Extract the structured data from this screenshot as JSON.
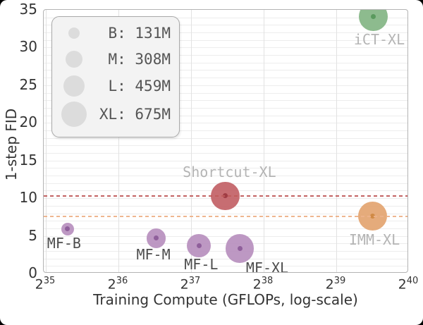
{
  "chart_data": {
    "type": "scatter",
    "subtype": "bubble",
    "xlabel": "Training Compute (GFLOPs, log-scale)",
    "ylabel": "1-step FID",
    "x_scale": "log2",
    "x_ticks": [
      "2^35",
      "2^36",
      "2^37",
      "2^38",
      "2^39",
      "2^40"
    ],
    "xlim_log2": [
      35,
      40
    ],
    "y_ticks": [
      0,
      5,
      10,
      15,
      20,
      25,
      30,
      35
    ],
    "ylim": [
      0,
      35
    ],
    "grid": "horizontal minor lines every 1 FID, vertical lines at each power of 2",
    "size_legend": {
      "position": "upper-left",
      "circle_color": "#dcdcdc",
      "entries": [
        {
          "label": "B: 131M",
          "size_key": "B",
          "params_m": 131
        },
        {
          "label": "M: 308M",
          "size_key": "M",
          "params_m": 308
        },
        {
          "label": "L: 459M",
          "size_key": "L",
          "params_m": 459
        },
        {
          "label": "XL: 675M",
          "size_key": "XL",
          "params_m": 675
        }
      ]
    },
    "points": [
      {
        "name": "MF-B",
        "log2_gflops": 35.3,
        "fid": 5.9,
        "size": "B",
        "params_m": 131,
        "color": "#b78fbe",
        "dot_color": "#8f5f9b",
        "label_color": "#4d4d4d"
      },
      {
        "name": "MF-M",
        "log2_gflops": 36.52,
        "fid": 4.7,
        "size": "M",
        "params_m": 308,
        "color": "#b78fbe",
        "dot_color": "#8f5f9b",
        "label_color": "#4d4d4d"
      },
      {
        "name": "MF-L",
        "log2_gflops": 37.11,
        "fid": 3.7,
        "size": "L",
        "params_m": 459,
        "color": "#b78fbe",
        "dot_color": "#8f5f9b",
        "label_color": "#4d4d4d"
      },
      {
        "name": "MF-XL",
        "log2_gflops": 37.67,
        "fid": 3.3,
        "size": "XL",
        "params_m": 675,
        "color": "#b78fbe",
        "dot_color": "#8f5f9b",
        "label_color": "#4d4d4d"
      },
      {
        "name": "Shortcut-XL",
        "log2_gflops": 37.47,
        "fid": 10.3,
        "size": "XL",
        "params_m": 675,
        "color": "#c26166",
        "dot_color": "#a03c44",
        "label_color": "#b4b4b4"
      },
      {
        "name": "IMM-XL",
        "log2_gflops": 39.5,
        "fid": 7.6,
        "size": "XL",
        "params_m": 675,
        "color": "#e3a470",
        "dot_color": "#d08a45",
        "label_color": "#b4b4b4"
      },
      {
        "name": "iCT-XL",
        "log2_gflops": 39.51,
        "fid": 34.1,
        "size": "XL",
        "params_m": 675,
        "color": "#83b584",
        "dot_color": "#5a9a5e",
        "label_color": "#b4b4b4"
      }
    ],
    "reference_lines": [
      {
        "fid": 10.3,
        "color": "#c05b5b",
        "style": "dashed",
        "matches": "Shortcut-XL"
      },
      {
        "fid": 7.6,
        "color": "#edb28a",
        "style": "dashed",
        "matches": "IMM-XL"
      }
    ]
  }
}
